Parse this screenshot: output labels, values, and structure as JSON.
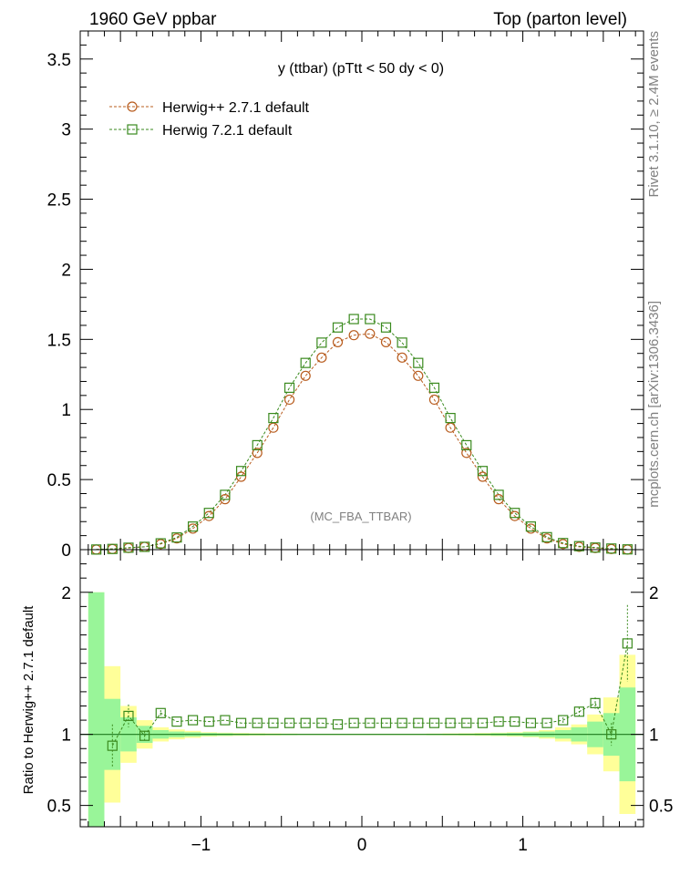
{
  "header": {
    "left": "1960 GeV ppbar",
    "right": "Top (parton level)",
    "plot_title": "y (ttbar) (pTtt < 50 dy < 0)",
    "watermark": "(MC_FBA_TTBAR)",
    "side_top": "Rivet 3.1.10, ≥ 2.4M events",
    "side_bottom": "mcplots.cern.ch [arXiv:1306.3436]"
  },
  "colors": {
    "herwigpp": "#b85c1e",
    "herwig7": "#3a8a1e",
    "band_inner": "#99f599",
    "band_outer": "#ffff99"
  },
  "chart_data": [
    {
      "type": "scatter",
      "xlim": [
        -1.75,
        1.75
      ],
      "ylim": [
        0,
        3.7
      ],
      "yticks": [
        0,
        0.5,
        1,
        1.5,
        2,
        2.5,
        3,
        3.5
      ],
      "ytick_labels": [
        "0",
        "0.5",
        "1",
        "1.5",
        "2",
        "2.5",
        "3",
        "3.5"
      ],
      "xlabel": "",
      "ylabel": "",
      "legend_position": "top-left",
      "x": [
        -1.65,
        -1.55,
        -1.45,
        -1.35,
        -1.25,
        -1.15,
        -1.05,
        -0.95,
        -0.85,
        -0.75,
        -0.65,
        -0.55,
        -0.45,
        -0.35,
        -0.25,
        -0.15,
        -0.05,
        0.05,
        0.15,
        0.25,
        0.35,
        0.45,
        0.55,
        0.65,
        0.75,
        0.85,
        0.95,
        1.05,
        1.15,
        1.25,
        1.35,
        1.45,
        1.55,
        1.65
      ],
      "series": [
        {
          "name": "Herwig++ 2.7.1 default",
          "marker": "circle",
          "values": [
            0.001,
            0.005,
            0.012,
            0.02,
            0.04,
            0.08,
            0.15,
            0.24,
            0.36,
            0.52,
            0.69,
            0.87,
            1.07,
            1.24,
            1.37,
            1.48,
            1.53,
            1.54,
            1.48,
            1.37,
            1.24,
            1.07,
            0.87,
            0.69,
            0.52,
            0.36,
            0.24,
            0.15,
            0.08,
            0.04,
            0.02,
            0.012,
            0.005,
            0.001
          ]
        },
        {
          "name": "Herwig 7.2.1 default",
          "marker": "square",
          "values": [
            0.001,
            0.005,
            0.014,
            0.02,
            0.045,
            0.087,
            0.165,
            0.262,
            0.391,
            0.561,
            0.745,
            0.939,
            1.155,
            1.332,
            1.477,
            1.585,
            1.645,
            1.645,
            1.585,
            1.477,
            1.332,
            1.155,
            0.939,
            0.745,
            0.561,
            0.391,
            0.262,
            0.165,
            0.089,
            0.047,
            0.025,
            0.015,
            0.008,
            0.002
          ]
        }
      ]
    },
    {
      "type": "scatter",
      "xlim": [
        -1.75,
        1.75
      ],
      "ylim": [
        0.35,
        2.3
      ],
      "yticks": [
        0.5,
        1,
        2
      ],
      "ytick_labels": [
        "0.5",
        "1",
        "2"
      ],
      "xticks": [
        -1,
        0,
        1
      ],
      "xtick_labels": [
        "−1",
        "0",
        "1"
      ],
      "ylabel": "Ratio to Herwig++ 2.7.1 default",
      "reference_line": 1,
      "band_edges": [
        -1.7,
        -1.6,
        -1.5,
        -1.4,
        -1.3,
        -1.2,
        -1.1,
        -1.0,
        -0.9,
        -0.8,
        -0.7,
        -0.6,
        -0.5,
        -0.4,
        -0.3,
        -0.2,
        -0.1,
        0.0,
        0.1,
        0.2,
        0.3,
        0.4,
        0.5,
        0.6,
        0.7,
        0.8,
        0.9,
        1.0,
        1.1,
        1.2,
        1.3,
        1.4,
        1.5,
        1.6,
        1.7
      ],
      "band_inner": [
        1.0,
        0.25,
        0.12,
        0.06,
        0.03,
        0.02,
        0.015,
        0.01,
        0.008,
        0.006,
        0.005,
        0.004,
        0.004,
        0.003,
        0.003,
        0.003,
        0.003,
        0.003,
        0.003,
        0.003,
        0.003,
        0.004,
        0.004,
        0.005,
        0.006,
        0.008,
        0.01,
        0.015,
        0.02,
        0.03,
        0.05,
        0.09,
        0.15,
        0.33
      ],
      "band_outer": [
        1.0,
        0.48,
        0.2,
        0.1,
        0.05,
        0.035,
        0.025,
        0.015,
        0.012,
        0.01,
        0.008,
        0.007,
        0.006,
        0.005,
        0.005,
        0.005,
        0.005,
        0.005,
        0.005,
        0.005,
        0.005,
        0.006,
        0.007,
        0.008,
        0.01,
        0.012,
        0.015,
        0.02,
        0.03,
        0.05,
        0.07,
        0.14,
        0.26,
        0.56
      ],
      "series": [
        {
          "name": "Herwig 7.2.1 default",
          "marker": "square",
          "values": [
            null,
            0.92,
            1.13,
            0.99,
            1.15,
            1.09,
            1.1,
            1.09,
            1.1,
            1.08,
            1.08,
            1.08,
            1.08,
            1.08,
            1.08,
            1.07,
            1.08,
            1.08,
            1.08,
            1.08,
            1.08,
            1.08,
            1.08,
            1.08,
            1.08,
            1.09,
            1.09,
            1.08,
            1.08,
            1.1,
            1.16,
            1.22,
            1.0,
            1.64
          ],
          "yerr": [
            0,
            0.15,
            0.08,
            0.03,
            0.02,
            0.01,
            0.01,
            0.01,
            0.01,
            0.01,
            0.01,
            0.01,
            0.01,
            0.01,
            0.01,
            0.01,
            0.01,
            0.01,
            0.01,
            0.01,
            0.01,
            0.01,
            0.01,
            0.01,
            0.01,
            0.01,
            0.01,
            0.01,
            0.01,
            0.02,
            0.03,
            0.04,
            0.08,
            0.27
          ]
        }
      ]
    }
  ]
}
